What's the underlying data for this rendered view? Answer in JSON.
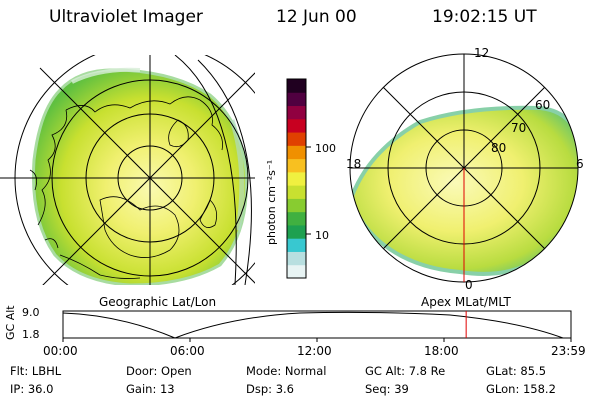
{
  "header": {
    "title": "Ultraviolet Imager",
    "date": "12 Jun 00",
    "time": "19:02:15 UT"
  },
  "colorbar": {
    "unit_label": "photon cm⁻²s⁻¹",
    "ticks": [
      "100",
      "10"
    ],
    "colors": [
      "#e8f4f4",
      "#b8dfe0",
      "#38c8d0",
      "#1ea050",
      "#40b040",
      "#88cc30",
      "#c8e030",
      "#f0f040",
      "#f8c020",
      "#f09000",
      "#e04000",
      "#c80020",
      "#900040",
      "#500040",
      "#200020"
    ]
  },
  "left_panel": {
    "label": "Geographic Lat/Lon"
  },
  "right_panel": {
    "label": "Apex MLat/MLT",
    "mlt_labels": {
      "top": "12",
      "left": "18",
      "right": "6",
      "bottom": "0"
    },
    "lat_labels": [
      "60",
      "70",
      "80"
    ]
  },
  "timeline": {
    "ylabel": "GC Alt",
    "yticks": [
      "9.0",
      "1.8"
    ],
    "xticks": [
      "00:00",
      "06:00",
      "12:00",
      "18:00",
      "23:59"
    ],
    "marker_time": "19:02",
    "marker_color": "#e00000"
  },
  "footer": {
    "row1": [
      {
        "key": "Flt:",
        "value": "LBHL"
      },
      {
        "key": "Door:",
        "value": "Open"
      },
      {
        "key": "Mode:",
        "value": "Normal"
      },
      {
        "key": "GC Alt:",
        "value": "7.8 Re"
      },
      {
        "key": "GLat:",
        "value": "85.5"
      }
    ],
    "row2": [
      {
        "key": "IP:",
        "value": "36.0"
      },
      {
        "key": "Gain:",
        "value": "13"
      },
      {
        "key": "Dsp:",
        "value": "3.6"
      },
      {
        "key": "Seq:",
        "value": "39"
      },
      {
        "key": "GLon:",
        "value": "158.2"
      }
    ]
  }
}
